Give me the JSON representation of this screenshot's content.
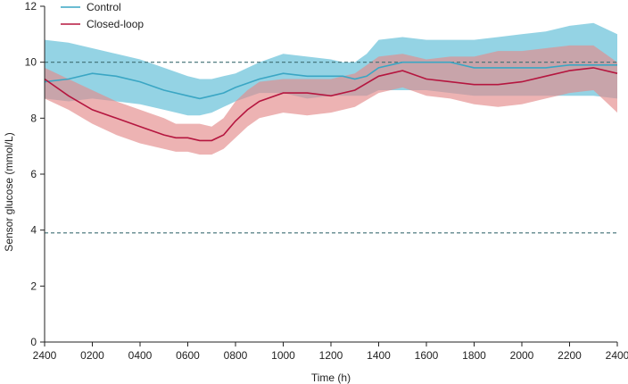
{
  "chart_data": {
    "type": "line",
    "title": "",
    "xlabel": "Time (h)",
    "ylabel": "Sensor glucose (mmol/L)",
    "ylim": [
      0,
      12
    ],
    "xlim": [
      0,
      24
    ],
    "yticks": [
      0,
      2,
      4,
      6,
      8,
      10,
      12
    ],
    "xticks": [
      {
        "x": 0,
        "label": "2400"
      },
      {
        "x": 2,
        "label": "0200"
      },
      {
        "x": 4,
        "label": "0400"
      },
      {
        "x": 6,
        "label": "0600"
      },
      {
        "x": 8,
        "label": "0800"
      },
      {
        "x": 10,
        "label": "1000"
      },
      {
        "x": 12,
        "label": "1200"
      },
      {
        "x": 14,
        "label": "1400"
      },
      {
        "x": 16,
        "label": "1600"
      },
      {
        "x": 18,
        "label": "1800"
      },
      {
        "x": 20,
        "label": "2000"
      },
      {
        "x": 22,
        "label": "2200"
      },
      {
        "x": 24,
        "label": "2400"
      }
    ],
    "reference_lines": [
      {
        "y": 10.0,
        "style": "dashed",
        "color": "#3f6f73"
      },
      {
        "y": 3.9,
        "style": "dashed",
        "color": "#3f6f73"
      }
    ],
    "legend_position": "top-left",
    "grid": false,
    "series": [
      {
        "name": "Control",
        "color": "#3aa6c4",
        "band_color": "#5bbcd6",
        "x": [
          0,
          1,
          2,
          3,
          4,
          5,
          6,
          6.5,
          7,
          7.5,
          8,
          9,
          10,
          11,
          12,
          12.5,
          13,
          13.5,
          14,
          15,
          16,
          17,
          18,
          19,
          20,
          21,
          22,
          23,
          24
        ],
        "mean": [
          9.3,
          9.4,
          9.6,
          9.5,
          9.3,
          9.0,
          8.8,
          8.7,
          8.8,
          8.9,
          9.1,
          9.4,
          9.6,
          9.5,
          9.5,
          9.5,
          9.4,
          9.5,
          9.8,
          10.0,
          10.0,
          10.0,
          9.8,
          9.8,
          9.8,
          9.8,
          9.9,
          9.9,
          9.9
        ],
        "upper": [
          10.8,
          10.7,
          10.5,
          10.3,
          10.1,
          9.8,
          9.5,
          9.4,
          9.4,
          9.5,
          9.6,
          10.0,
          10.3,
          10.2,
          10.1,
          10.0,
          10.0,
          10.3,
          10.8,
          10.9,
          10.8,
          10.8,
          10.8,
          10.9,
          11.0,
          11.1,
          11.3,
          11.4,
          11.0
        ],
        "lower": [
          8.7,
          8.6,
          8.7,
          8.6,
          8.5,
          8.3,
          8.1,
          8.1,
          8.2,
          8.4,
          8.6,
          8.9,
          8.9,
          8.7,
          8.8,
          8.8,
          8.8,
          8.8,
          9.0,
          9.0,
          9.0,
          8.9,
          8.8,
          8.8,
          8.8,
          8.8,
          8.8,
          8.8,
          8.7
        ]
      },
      {
        "name": "Closed-loop",
        "color": "#b5163f",
        "band_color": "#e38a8a",
        "x": [
          0,
          1,
          2,
          3,
          4,
          5,
          5.5,
          6,
          6.5,
          7,
          7.5,
          8,
          8.5,
          9,
          10,
          11,
          12,
          13,
          14,
          15,
          16,
          17,
          18,
          19,
          20,
          21,
          22,
          23,
          24
        ],
        "mean": [
          9.4,
          8.8,
          8.3,
          8.0,
          7.7,
          7.4,
          7.3,
          7.3,
          7.2,
          7.2,
          7.4,
          7.9,
          8.3,
          8.6,
          8.9,
          8.9,
          8.8,
          9.0,
          9.5,
          9.7,
          9.4,
          9.3,
          9.2,
          9.2,
          9.3,
          9.5,
          9.7,
          9.8,
          9.6
        ],
        "upper": [
          9.8,
          9.4,
          9.0,
          8.6,
          8.3,
          8.0,
          7.8,
          7.8,
          7.8,
          7.7,
          8.0,
          8.6,
          9.0,
          9.3,
          9.4,
          9.4,
          9.4,
          9.6,
          10.2,
          10.3,
          10.1,
          10.2,
          10.2,
          10.4,
          10.4,
          10.5,
          10.6,
          10.6,
          10.0
        ],
        "lower": [
          8.7,
          8.3,
          7.8,
          7.4,
          7.1,
          6.9,
          6.8,
          6.8,
          6.7,
          6.7,
          6.9,
          7.3,
          7.7,
          8.0,
          8.2,
          8.1,
          8.2,
          8.4,
          8.9,
          9.1,
          8.8,
          8.7,
          8.5,
          8.4,
          8.5,
          8.7,
          8.9,
          9.0,
          8.2
        ]
      }
    ]
  }
}
